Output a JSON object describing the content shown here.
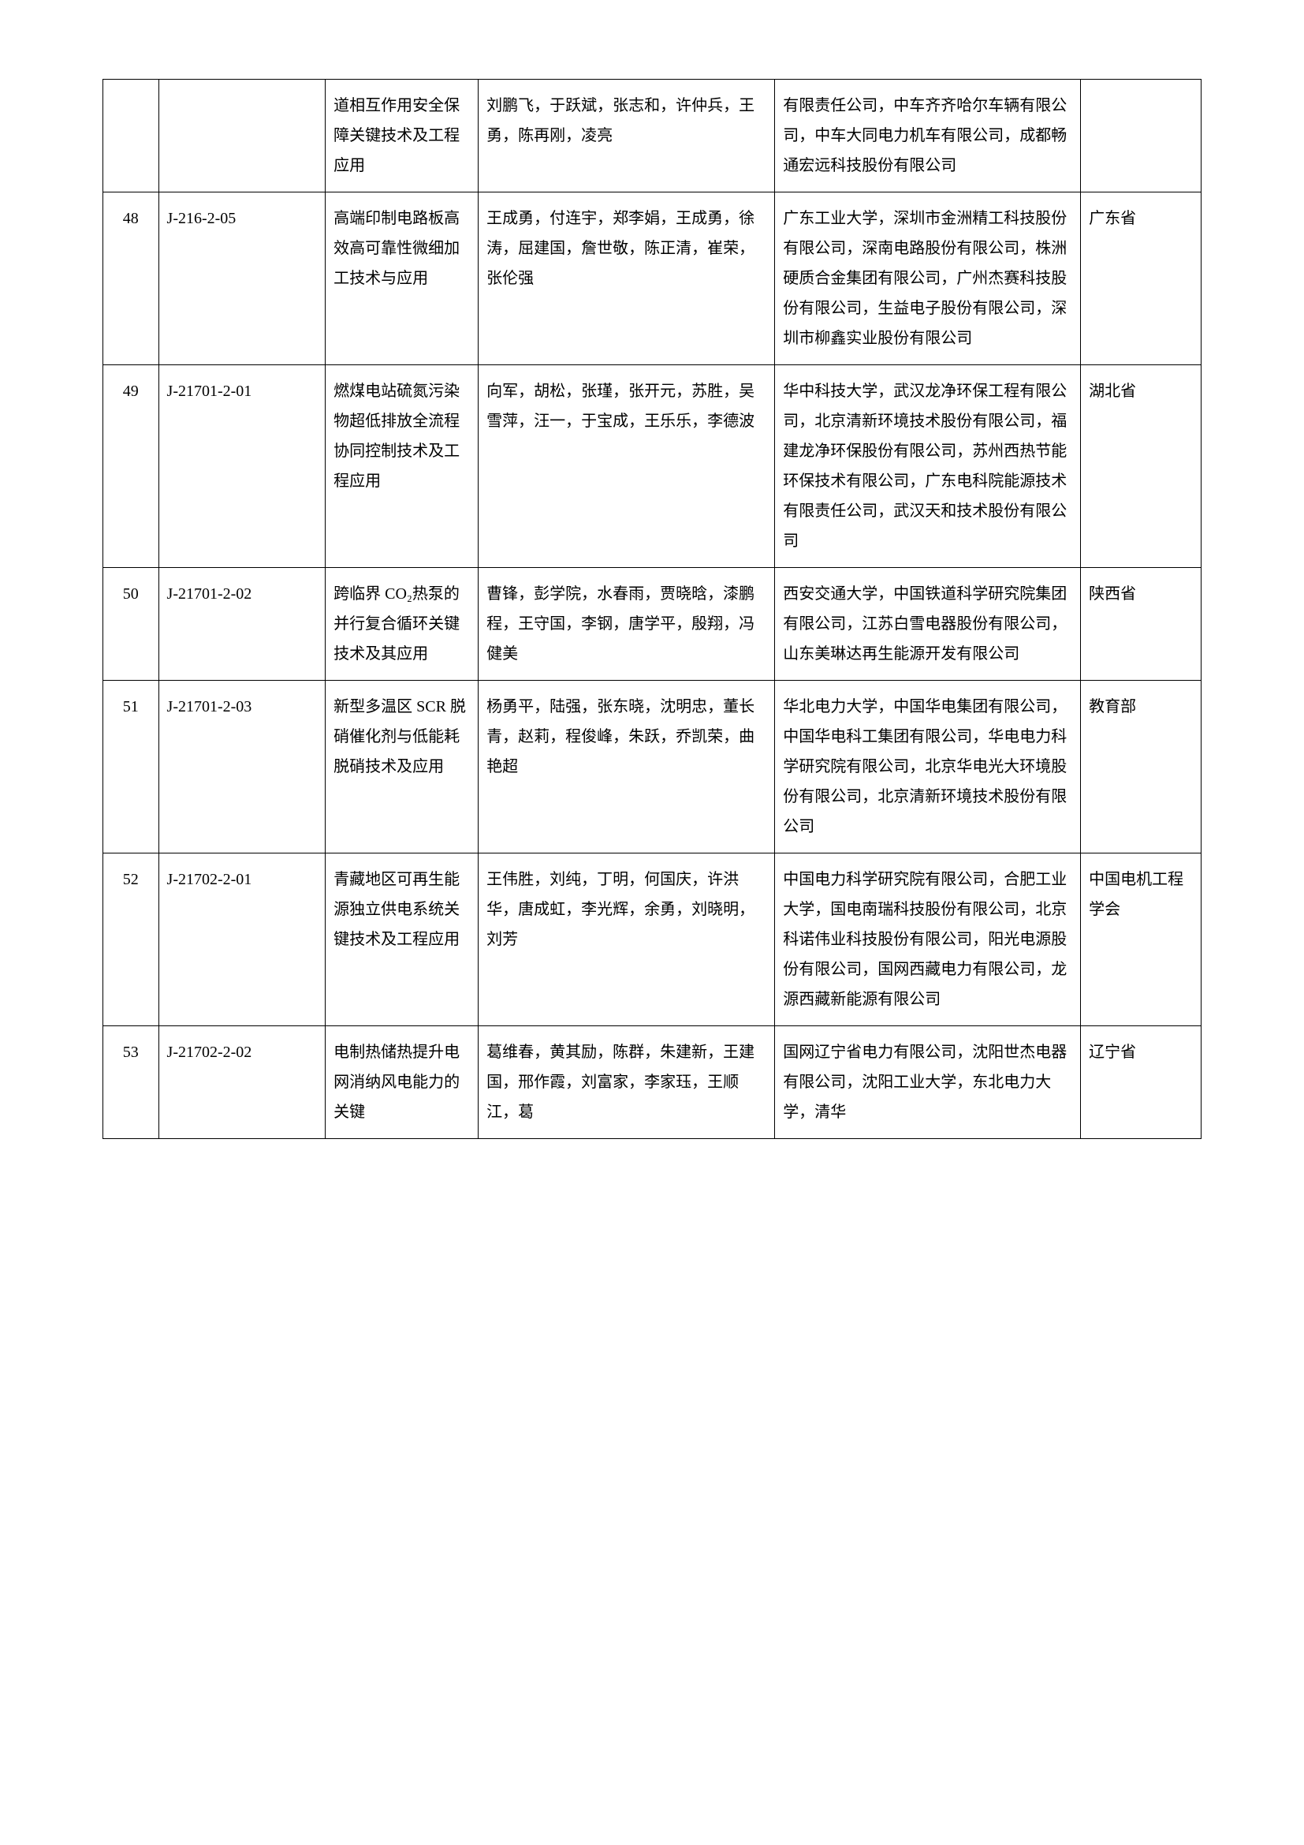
{
  "table": {
    "rows": [
      {
        "seq": "",
        "code": "",
        "name": "道相互作用安全保障关键技术及工程应用",
        "people": "刘鹏飞，于跃斌，张志和，许仲兵，王勇，陈再刚，凌亮",
        "org": "有限责任公司，中车齐齐哈尔车辆有限公司，中车大同电力机车有限公司，成都畅通宏远科技股份有限公司",
        "region": ""
      },
      {
        "seq": "48",
        "code": "J-216-2-05",
        "name": "高端印制电路板高效高可靠性微细加工技术与应用",
        "people": "王成勇，付连宇，郑李娟，王成勇，徐涛，屈建国，詹世敬，陈正清，崔荣，张伦强",
        "org": "广东工业大学，深圳市金洲精工科技股份有限公司，深南电路股份有限公司，株洲硬质合金集团有限公司，广州杰赛科技股份有限公司，生益电子股份有限公司，深圳市柳鑫实业股份有限公司",
        "region": "广东省"
      },
      {
        "seq": "49",
        "code": "J-21701-2-01",
        "name": "燃煤电站硫氮污染物超低排放全流程协同控制技术及工程应用",
        "people": "向军，胡松，张瑾，张开元，苏胜，吴雪萍，汪一，于宝成，王乐乐，李德波",
        "org": "华中科技大学，武汉龙净环保工程有限公司，北京清新环境技术股份有限公司，福建龙净环保股份有限公司，苏州西热节能环保技术有限公司，广东电科院能源技术有限责任公司，武汉天和技术股份有限公司",
        "region": "湖北省"
      },
      {
        "seq": "50",
        "code": "J-21701-2-02",
        "name": "跨临界 CO₂热泵的并行复合循环关键技术及其应用",
        "people": "曹锋，彭学院，水春雨，贾晓晗，漆鹏程，王守国，李钢，唐学平，殷翔，冯健美",
        "org": "西安交通大学，中国铁道科学研究院集团有限公司，江苏白雪电器股份有限公司，山东美琳达再生能源开发有限公司",
        "region": "陕西省"
      },
      {
        "seq": "51",
        "code": "J-21701-2-03",
        "name": "新型多温区 SCR 脱硝催化剂与低能耗脱硝技术及应用",
        "people": "杨勇平，陆强，张东晓，沈明忠，董长青，赵莉，程俊峰，朱跃，乔凯荣，曲艳超",
        "org": "华北电力大学，中国华电集团有限公司，中国华电科工集团有限公司，华电电力科学研究院有限公司，北京华电光大环境股份有限公司，北京清新环境技术股份有限公司",
        "region": "教育部"
      },
      {
        "seq": "52",
        "code": "J-21702-2-01",
        "name": "青藏地区可再生能源独立供电系统关键技术及工程应用",
        "people": "王伟胜，刘纯，丁明，何国庆，许洪华，唐成虹，李光辉，余勇，刘晓明，刘芳",
        "org": "中国电力科学研究院有限公司，合肥工业大学，国电南瑞科技股份有限公司，北京科诺伟业科技股份有限公司，阳光电源股份有限公司，国网西藏电力有限公司，龙源西藏新能源有限公司",
        "region": "中国电机工程学会"
      },
      {
        "seq": "53",
        "code": "J-21702-2-02",
        "name": "电制热储热提升电网消纳风电能力的关键",
        "people": "葛维春，黄其励，陈群，朱建新，王建国，邢作霞，刘富家，李家珏，王顺江，葛",
        "org": "国网辽宁省电力有限公司，沈阳世杰电器有限公司，沈阳工业大学，东北电力大学，清华",
        "region": "辽宁省"
      }
    ]
  }
}
